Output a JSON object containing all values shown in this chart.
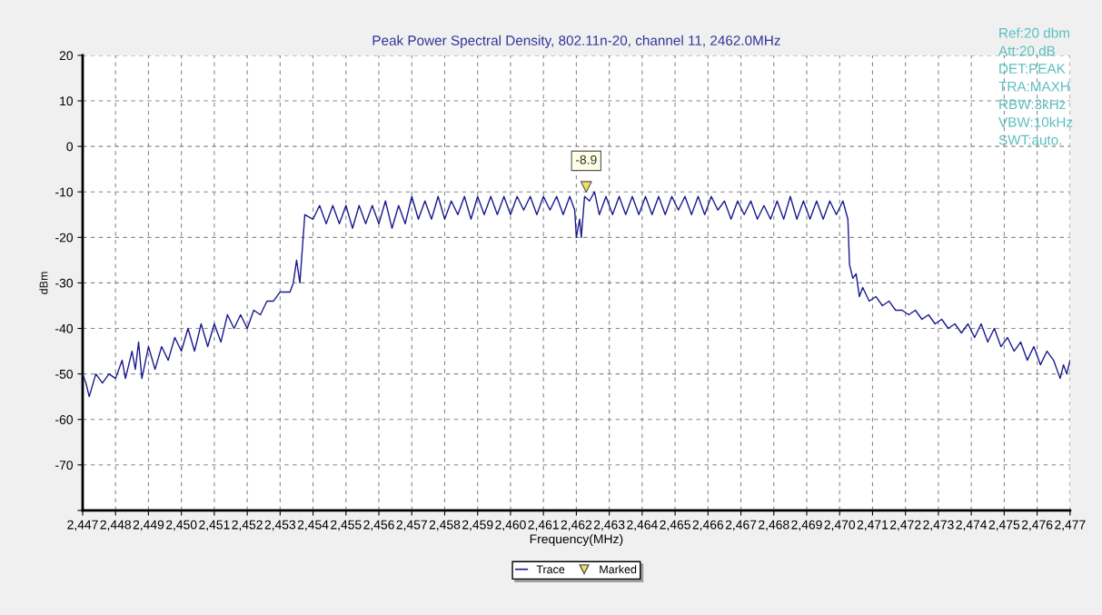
{
  "chart_data": {
    "type": "line",
    "title": "Peak Power Spectral Density, 802.11n-20, channel 11, 2462.0MHz",
    "xlabel": "Frequency(MHz)",
    "ylabel": "dBm",
    "annotations": [
      "Ref:20 dbm",
      "Att:20.dB",
      "DET:PEAK",
      "TRA:MAXH",
      "RBW:3kHz",
      "VBW:10kHz",
      "SWT:auto.",
      {
        "text": "-8.9",
        "x": 2462.3,
        "y": -8.9
      }
    ],
    "xlim": [
      2447,
      2477
    ],
    "ylim": [
      -80,
      20
    ],
    "xticks": [
      {
        "value": 2447,
        "label": "2,447"
      },
      {
        "value": 2448,
        "label": "2,448"
      },
      {
        "value": 2449,
        "label": "2,449"
      },
      {
        "value": 2450,
        "label": "2,450"
      },
      {
        "value": 2451,
        "label": "2,451"
      },
      {
        "value": 2452,
        "label": "2,452"
      },
      {
        "value": 2453,
        "label": "2,453"
      },
      {
        "value": 2454,
        "label": "2,454"
      },
      {
        "value": 2455,
        "label": "2,455"
      },
      {
        "value": 2456,
        "label": "2,456"
      },
      {
        "value": 2457,
        "label": "2,457"
      },
      {
        "value": 2458,
        "label": "2,458"
      },
      {
        "value": 2459,
        "label": "2,459"
      },
      {
        "value": 2460,
        "label": "2,460"
      },
      {
        "value": 2461,
        "label": "2,461"
      },
      {
        "value": 2462,
        "label": "2,462"
      },
      {
        "value": 2463,
        "label": "2,463"
      },
      {
        "value": 2464,
        "label": "2,464"
      },
      {
        "value": 2465,
        "label": "2,465"
      },
      {
        "value": 2466,
        "label": "2,466"
      },
      {
        "value": 2467,
        "label": "2,467"
      },
      {
        "value": 2468,
        "label": "2,468"
      },
      {
        "value": 2469,
        "label": "2,469"
      },
      {
        "value": 2470,
        "label": "2,470"
      },
      {
        "value": 2471,
        "label": "2,471"
      },
      {
        "value": 2472,
        "label": "2,472"
      },
      {
        "value": 2473,
        "label": "2,473"
      },
      {
        "value": 2474,
        "label": "2,474"
      },
      {
        "value": 2475,
        "label": "2,475"
      },
      {
        "value": 2476,
        "label": "2,476"
      },
      {
        "value": 2477,
        "label": "2,477"
      }
    ],
    "yticks": [
      {
        "value": -80,
        "label": null
      },
      -70,
      -60,
      -50,
      -40,
      -30,
      -20,
      -10,
      0,
      10,
      20
    ],
    "grid": true,
    "legend": "bottom",
    "series": [
      {
        "name": "Trace",
        "color": "#1a1a8c",
        "x": [
          2447.0,
          2447.1,
          2447.2,
          2447.4,
          2447.6,
          2447.8,
          2448.0,
          2448.2,
          2448.3,
          2448.5,
          2448.6,
          2448.7,
          2448.8,
          2449.0,
          2449.2,
          2449.4,
          2449.6,
          2449.8,
          2450.0,
          2450.2,
          2450.4,
          2450.6,
          2450.8,
          2451.0,
          2451.2,
          2451.4,
          2451.6,
          2451.8,
          2452.0,
          2452.2,
          2452.4,
          2452.6,
          2452.8,
          2453.0,
          2453.3,
          2453.4,
          2453.5,
          2453.6,
          2453.7,
          2453.75,
          2454.0,
          2454.2,
          2454.4,
          2454.6,
          2454.8,
          2455.0,
          2455.2,
          2455.4,
          2455.6,
          2455.8,
          2456.0,
          2456.2,
          2456.4,
          2456.6,
          2456.8,
          2457.0,
          2457.2,
          2457.4,
          2457.6,
          2457.8,
          2458.0,
          2458.2,
          2458.4,
          2458.6,
          2458.8,
          2459.0,
          2459.2,
          2459.4,
          2459.6,
          2459.8,
          2460.0,
          2460.2,
          2460.4,
          2460.6,
          2460.8,
          2461.0,
          2461.2,
          2461.4,
          2461.6,
          2461.8,
          2461.95,
          2462.0,
          2462.1,
          2462.15,
          2462.25,
          2462.4,
          2462.55,
          2462.7,
          2462.9,
          2463.1,
          2463.3,
          2463.5,
          2463.7,
          2463.9,
          2464.1,
          2464.3,
          2464.5,
          2464.7,
          2464.9,
          2465.1,
          2465.3,
          2465.5,
          2465.7,
          2465.9,
          2466.1,
          2466.3,
          2466.5,
          2466.7,
          2466.9,
          2467.1,
          2467.3,
          2467.5,
          2467.7,
          2467.9,
          2468.1,
          2468.3,
          2468.5,
          2468.7,
          2468.9,
          2469.1,
          2469.3,
          2469.5,
          2469.7,
          2469.9,
          2470.1,
          2470.25,
          2470.3,
          2470.4,
          2470.5,
          2470.6,
          2470.7,
          2470.9,
          2471.1,
          2471.3,
          2471.5,
          2471.7,
          2471.9,
          2472.1,
          2472.3,
          2472.5,
          2472.7,
          2472.9,
          2473.1,
          2473.3,
          2473.5,
          2473.7,
          2473.9,
          2474.1,
          2474.3,
          2474.5,
          2474.7,
          2474.9,
          2475.1,
          2475.3,
          2475.5,
          2475.7,
          2475.9,
          2476.1,
          2476.3,
          2476.5,
          2476.7,
          2476.8,
          2476.9,
          2477.0
        ],
        "values": [
          -50,
          -52,
          -55,
          -50,
          -52,
          -50,
          -51,
          -47,
          -51,
          -45,
          -49,
          -43,
          -51,
          -44,
          -49,
          -44,
          -47,
          -42,
          -45,
          -40,
          -45,
          -39,
          -44,
          -39,
          -43,
          -37,
          -40,
          -37,
          -40,
          -36,
          -37,
          -34,
          -34,
          -32,
          -32,
          -30,
          -25,
          -30,
          -20,
          -15,
          -16,
          -13,
          -17,
          -13,
          -17,
          -13,
          -18,
          -13,
          -17,
          -13,
          -17,
          -12,
          -18,
          -13,
          -17,
          -11,
          -16,
          -12,
          -16,
          -11,
          -16,
          -12,
          -15,
          -11,
          -16,
          -11,
          -15,
          -11,
          -15,
          -11,
          -15,
          -11,
          -14,
          -11,
          -15,
          -11,
          -14,
          -11,
          -15,
          -11,
          -14,
          -20,
          -16,
          -20,
          -11,
          -12,
          -10,
          -15,
          -11,
          -15,
          -11,
          -15,
          -11,
          -15,
          -11,
          -15,
          -11,
          -15,
          -11,
          -14,
          -11,
          -15,
          -11,
          -15,
          -11,
          -14,
          -12,
          -16,
          -12,
          -15,
          -12,
          -16,
          -13,
          -16,
          -12,
          -16,
          -11,
          -16,
          -12,
          -16,
          -12,
          -16,
          -12,
          -15,
          -12,
          -16,
          -26,
          -29,
          -28,
          -33,
          -31,
          -34,
          -33,
          -35,
          -34,
          -36,
          -36,
          -37,
          -36,
          -38,
          -37,
          -39,
          -38,
          -40,
          -39,
          -41,
          -39,
          -42,
          -39,
          -43,
          -40,
          -44,
          -42,
          -45,
          -43,
          -47,
          -44,
          -48,
          -45,
          -47,
          -51,
          -48,
          -50,
          -47
        ]
      },
      {
        "name": "Marked",
        "type": "scatter",
        "marker": "triangle",
        "color": "#f0e060",
        "x": [
          2462.3
        ],
        "values": [
          -8.9
        ]
      }
    ]
  }
}
